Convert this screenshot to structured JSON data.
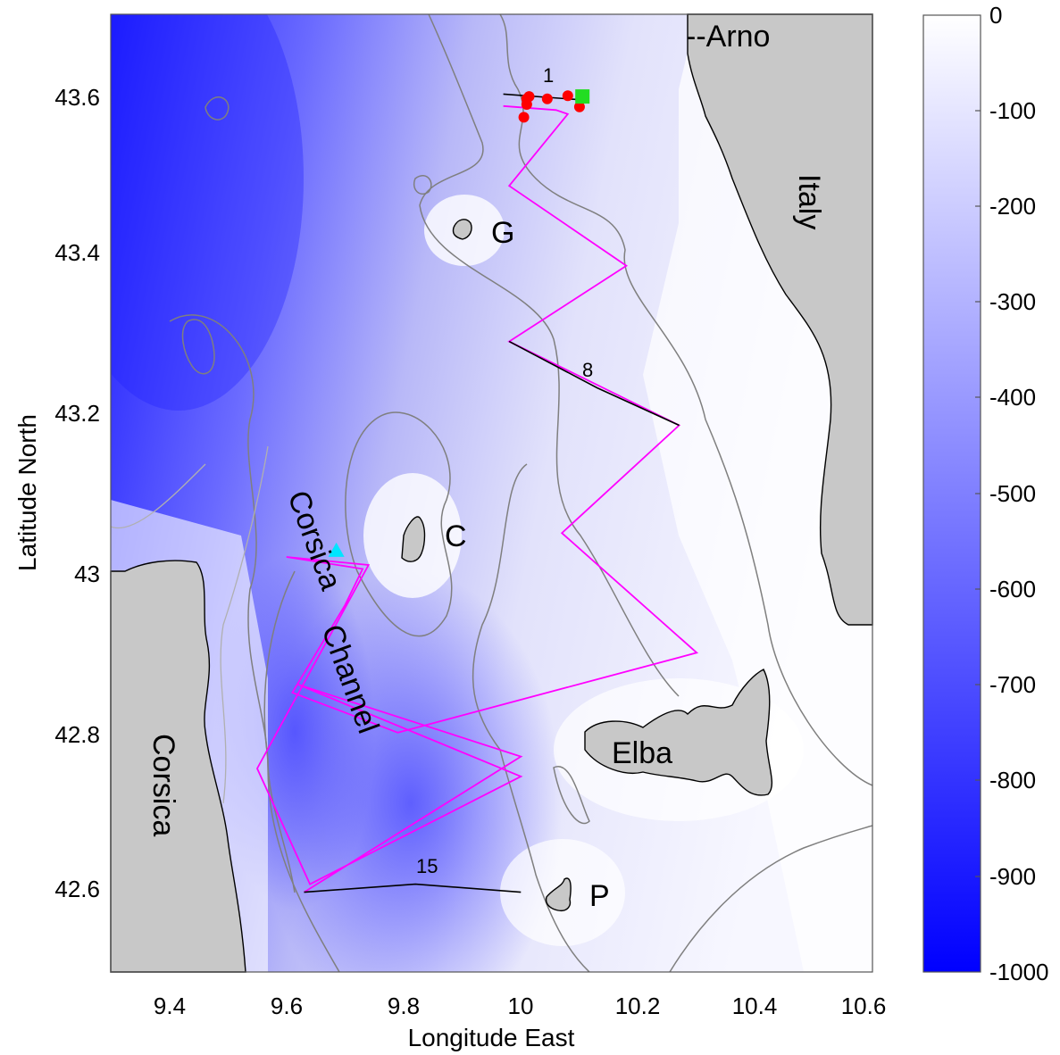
{
  "chart_data": {
    "type": "map",
    "xlabel": "Longitude East",
    "ylabel": "Latitude North",
    "xlim": [
      9.3,
      10.6
    ],
    "ylim": [
      42.5,
      43.7
    ],
    "x_ticks": [
      "9.4",
      "9.6",
      "9.8",
      "10",
      "10.2",
      "10.4",
      "10.6"
    ],
    "y_ticks": [
      "42.6",
      "42.8",
      "43",
      "43.2",
      "43.4",
      "43.6"
    ],
    "colorbar": {
      "min": -1000,
      "max": 0,
      "ticks": [
        "0",
        "-100",
        "-200",
        "-300",
        "-400",
        "-500",
        "-600",
        "-700",
        "-800",
        "-900",
        "-1000"
      ],
      "colors": {
        "shallow": "#ffffff",
        "deep": "#0000ff"
      }
    },
    "labels": {
      "arno": "--Arno",
      "italy": "Italy",
      "g": "G",
      "c": "C",
      "corsica_channel_1": "Corsica",
      "corsica_channel_2": "Channel",
      "elba": "Elba",
      "corsica": "Corsica",
      "p": "P",
      "leg1": "1",
      "leg8": "8",
      "leg15": "15"
    },
    "track": {
      "color": "#ff00ff",
      "points": [
        [
          9.97,
          43.585
        ],
        [
          10.06,
          43.58
        ],
        [
          10.08,
          43.575
        ],
        [
          9.98,
          43.485
        ],
        [
          10.18,
          43.385
        ],
        [
          9.98,
          43.29
        ],
        [
          10.27,
          43.185
        ],
        [
          10.07,
          43.05
        ],
        [
          10.3,
          42.9
        ],
        [
          9.79,
          42.8
        ],
        [
          9.61,
          42.85
        ],
        [
          9.7,
          42.96
        ],
        [
          9.73,
          43.005
        ],
        [
          9.6,
          43.02
        ],
        [
          9.74,
          43.01
        ],
        [
          9.55,
          42.755
        ],
        [
          9.64,
          42.61
        ],
        [
          10.0,
          42.745
        ],
        [
          9.62,
          42.86
        ],
        [
          10.0,
          42.77
        ],
        [
          9.63,
          42.6
        ]
      ]
    },
    "black_segments": [
      {
        "label": "1",
        "points": [
          [
            9.97,
            43.6
          ],
          [
            10.1,
            43.593
          ]
        ]
      },
      {
        "label": "8",
        "points": [
          [
            9.98,
            43.29
          ],
          [
            10.13,
            43.232
          ],
          [
            10.27,
            43.185
          ]
        ]
      },
      {
        "label": "15",
        "points": [
          [
            9.63,
            42.6
          ],
          [
            9.82,
            42.61
          ],
          [
            10.0,
            42.6
          ]
        ]
      }
    ],
    "red_points": [
      [
        10.01,
        43.594
      ],
      [
        10.014,
        43.597
      ],
      [
        10.01,
        43.587
      ],
      [
        10.045,
        43.594
      ],
      [
        10.08,
        43.598
      ],
      [
        10.1,
        43.584
      ],
      [
        10.005,
        43.571
      ]
    ],
    "green_square": [
      10.105,
      43.597
    ],
    "cyan_triangle": [
      9.685,
      43.028
    ]
  }
}
